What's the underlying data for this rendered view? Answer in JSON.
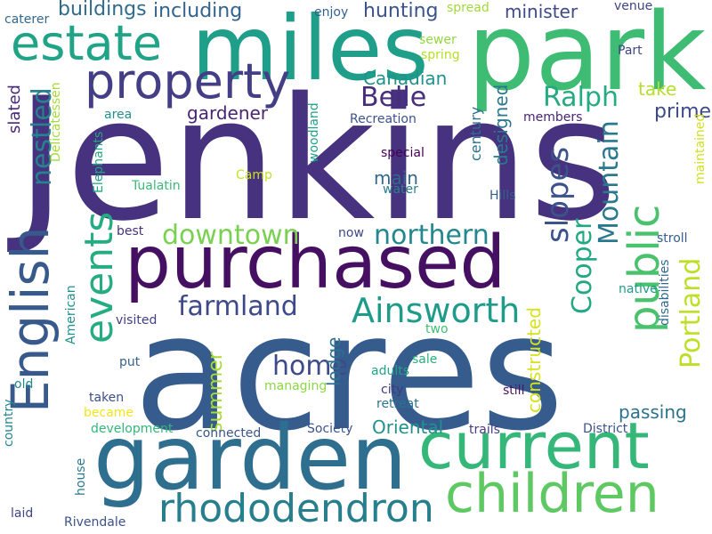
{
  "words": [
    {
      "text": "Jenkins",
      "color": "#46327e"
    },
    {
      "text": "acres",
      "color": "#365c8d"
    },
    {
      "text": "park",
      "color": "#3fbc73"
    },
    {
      "text": "miles",
      "color": "#1f9e89"
    },
    {
      "text": "garden",
      "color": "#2e6e8e"
    },
    {
      "text": "purchased",
      "color": "#450f62"
    },
    {
      "text": "current",
      "color": "#35b779"
    },
    {
      "text": "English",
      "color": "#38598c"
    },
    {
      "text": "children",
      "color": "#5ec962"
    },
    {
      "text": "estate",
      "color": "#20a386"
    },
    {
      "text": "property",
      "color": "#433e85"
    },
    {
      "text": "rhododendron",
      "color": "#277f8e"
    },
    {
      "text": "public",
      "color": "#4ac16d"
    },
    {
      "text": "events",
      "color": "#25ac82"
    },
    {
      "text": "Ainsworth",
      "color": "#1e9c89"
    },
    {
      "text": "downtown",
      "color": "#7ad151"
    },
    {
      "text": "northern",
      "color": "#23888e"
    },
    {
      "text": "farmland",
      "color": "#3e4989"
    },
    {
      "text": "slopes",
      "color": "#3b528b"
    },
    {
      "text": "Mountain",
      "color": "#2a788e"
    },
    {
      "text": "Belle",
      "color": "#472d7b"
    },
    {
      "text": "nestled",
      "color": "#26828e"
    },
    {
      "text": "home",
      "color": "#3e4a89"
    },
    {
      "text": "Ralph",
      "color": "#25ab82"
    },
    {
      "text": "Cooper",
      "color": "#22a884"
    },
    {
      "text": "Portland",
      "color": "#bddf26"
    },
    {
      "text": "summer",
      "color": "#a8db34"
    },
    {
      "text": "buildings",
      "color": "#2f6b8e"
    },
    {
      "text": "including",
      "color": "#33638d"
    },
    {
      "text": "hunting",
      "color": "#3b528b"
    },
    {
      "text": "minister",
      "color": "#3e4989"
    },
    {
      "text": "Canadian",
      "color": "#21918c"
    },
    {
      "text": "gardener",
      "color": "#482475"
    },
    {
      "text": "prime",
      "color": "#3e4a89"
    },
    {
      "text": "take",
      "color": "#b5de2b"
    },
    {
      "text": "designed",
      "color": "#2a788e"
    },
    {
      "text": "main",
      "color": "#31688e"
    },
    {
      "text": "passing",
      "color": "#2c728e"
    },
    {
      "text": "Oriental",
      "color": "#21918c"
    },
    {
      "text": "constructed",
      "color": "#d8e219"
    },
    {
      "text": "lodge",
      "color": "#2d708e"
    },
    {
      "text": "slated",
      "color": "#482878"
    },
    {
      "text": "century",
      "color": "#2d708e"
    },
    {
      "text": "caterer",
      "color": "#31688e"
    },
    {
      "text": "enjoy",
      "color": "#34618d"
    },
    {
      "text": "spread",
      "color": "#a0da39"
    },
    {
      "text": "venue",
      "color": "#404588"
    },
    {
      "text": "sewer",
      "color": "#93d741"
    },
    {
      "text": "spring",
      "color": "#b5de2b"
    },
    {
      "text": "Part",
      "color": "#414487"
    },
    {
      "text": "Recreation",
      "color": "#3b528b"
    },
    {
      "text": "members",
      "color": "#482475"
    },
    {
      "text": "area",
      "color": "#21918c"
    },
    {
      "text": "Delicatessen",
      "color": "#a5db36"
    },
    {
      "text": "maintained",
      "color": "#d0e11c"
    },
    {
      "text": "Elephants",
      "color": "#22a785"
    },
    {
      "text": "Camp",
      "color": "#c8e020"
    },
    {
      "text": "Tualatin",
      "color": "#3aba76"
    },
    {
      "text": "woodland",
      "color": "#1fa088"
    },
    {
      "text": "special",
      "color": "#440154"
    },
    {
      "text": "water",
      "color": "#27808e"
    },
    {
      "text": "Hills",
      "color": "#355f8d"
    },
    {
      "text": "best",
      "color": "#46337f"
    },
    {
      "text": "now",
      "color": "#3f4889"
    },
    {
      "text": "stroll",
      "color": "#365d8d"
    },
    {
      "text": "native",
      "color": "#1e9b8a"
    },
    {
      "text": "disabilities",
      "color": "#31688e"
    },
    {
      "text": "American",
      "color": "#21908d"
    },
    {
      "text": "visited",
      "color": "#433e85"
    },
    {
      "text": "two",
      "color": "#40bd72"
    },
    {
      "text": "put",
      "color": "#34618d"
    },
    {
      "text": "adults",
      "color": "#20a386"
    },
    {
      "text": "sale",
      "color": "#29af7f"
    },
    {
      "text": "managing",
      "color": "#8bd646"
    },
    {
      "text": "city",
      "color": "#453781"
    },
    {
      "text": "still",
      "color": "#481668"
    },
    {
      "text": "old",
      "color": "#24868e"
    },
    {
      "text": "taken",
      "color": "#3d4e8a"
    },
    {
      "text": "retreat",
      "color": "#2c738e"
    },
    {
      "text": "became",
      "color": "#f1e51d"
    },
    {
      "text": "country",
      "color": "#25848e"
    },
    {
      "text": "development",
      "color": "#32b67a"
    },
    {
      "text": "connected",
      "color": "#39558c"
    },
    {
      "text": "Society",
      "color": "#3a548c"
    },
    {
      "text": "trails",
      "color": "#443b84"
    },
    {
      "text": "District",
      "color": "#3b528b"
    },
    {
      "text": "house",
      "color": "#297b8e"
    },
    {
      "text": "laid",
      "color": "#404688"
    },
    {
      "text": "Rivendale",
      "color": "#3b528b"
    }
  ]
}
